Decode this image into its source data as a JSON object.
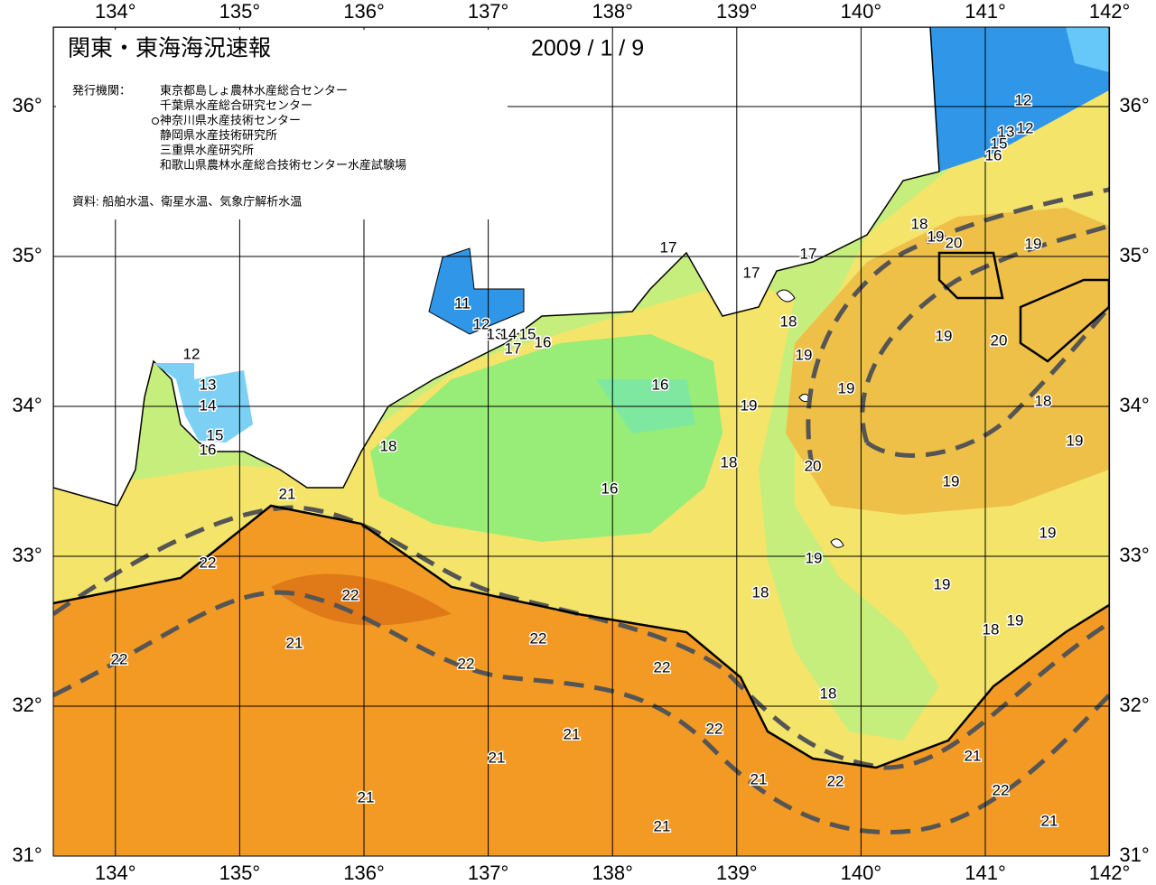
{
  "header": {
    "title": "関東・東海海況速報",
    "date": "2009 / 1 / 9",
    "issuer_label": "発行機関：",
    "issuers": [
      "東京都島しょ農林水産総合センター",
      "千葉県水産総合研究センター",
      "神奈川県水産技術センター",
      "静岡県水産技術研究所",
      "三重県水産研究所",
      "和歌山県農林水産総合技術センター水産試験場"
    ],
    "source": "資料: 船舶水温、衛星水温、気象庁解析水温"
  },
  "map": {
    "lon_ticks": [
      {
        "value": 134,
        "label": "134°"
      },
      {
        "value": 135,
        "label": "135°"
      },
      {
        "value": 136,
        "label": "136°"
      },
      {
        "value": 137,
        "label": "137°"
      },
      {
        "value": 138,
        "label": "138°"
      },
      {
        "value": 139,
        "label": "139°"
      },
      {
        "value": 140,
        "label": "140°"
      },
      {
        "value": 141,
        "label": "141°"
      },
      {
        "value": 142,
        "label": "142°"
      }
    ],
    "lat_ticks": [
      {
        "value": 31,
        "label": "31°"
      },
      {
        "value": 32,
        "label": "32°"
      },
      {
        "value": 33,
        "label": "33°"
      },
      {
        "value": 34,
        "label": "34°"
      },
      {
        "value": 35,
        "label": "35°"
      },
      {
        "value": 36,
        "label": "36°"
      }
    ],
    "contour_labels": [
      "12",
      "13",
      "14",
      "15",
      "16",
      "11",
      "12",
      "13",
      "14",
      "15",
      "16",
      "17",
      "17",
      "17",
      "17",
      "18",
      "19",
      "19",
      "16",
      "19",
      "18",
      "20",
      "19",
      "16",
      "18",
      "21",
      "22",
      "22",
      "21",
      "22",
      "22",
      "22",
      "22",
      "22",
      "21",
      "21",
      "21",
      "21",
      "21",
      "22",
      "18",
      "18",
      "19",
      "19",
      "19",
      "18",
      "19",
      "19",
      "18",
      "20",
      "19",
      "19",
      "20",
      "19",
      "18",
      "12",
      "13",
      "12",
      "15",
      "16",
      "21",
      "22",
      "21"
    ]
  }
}
